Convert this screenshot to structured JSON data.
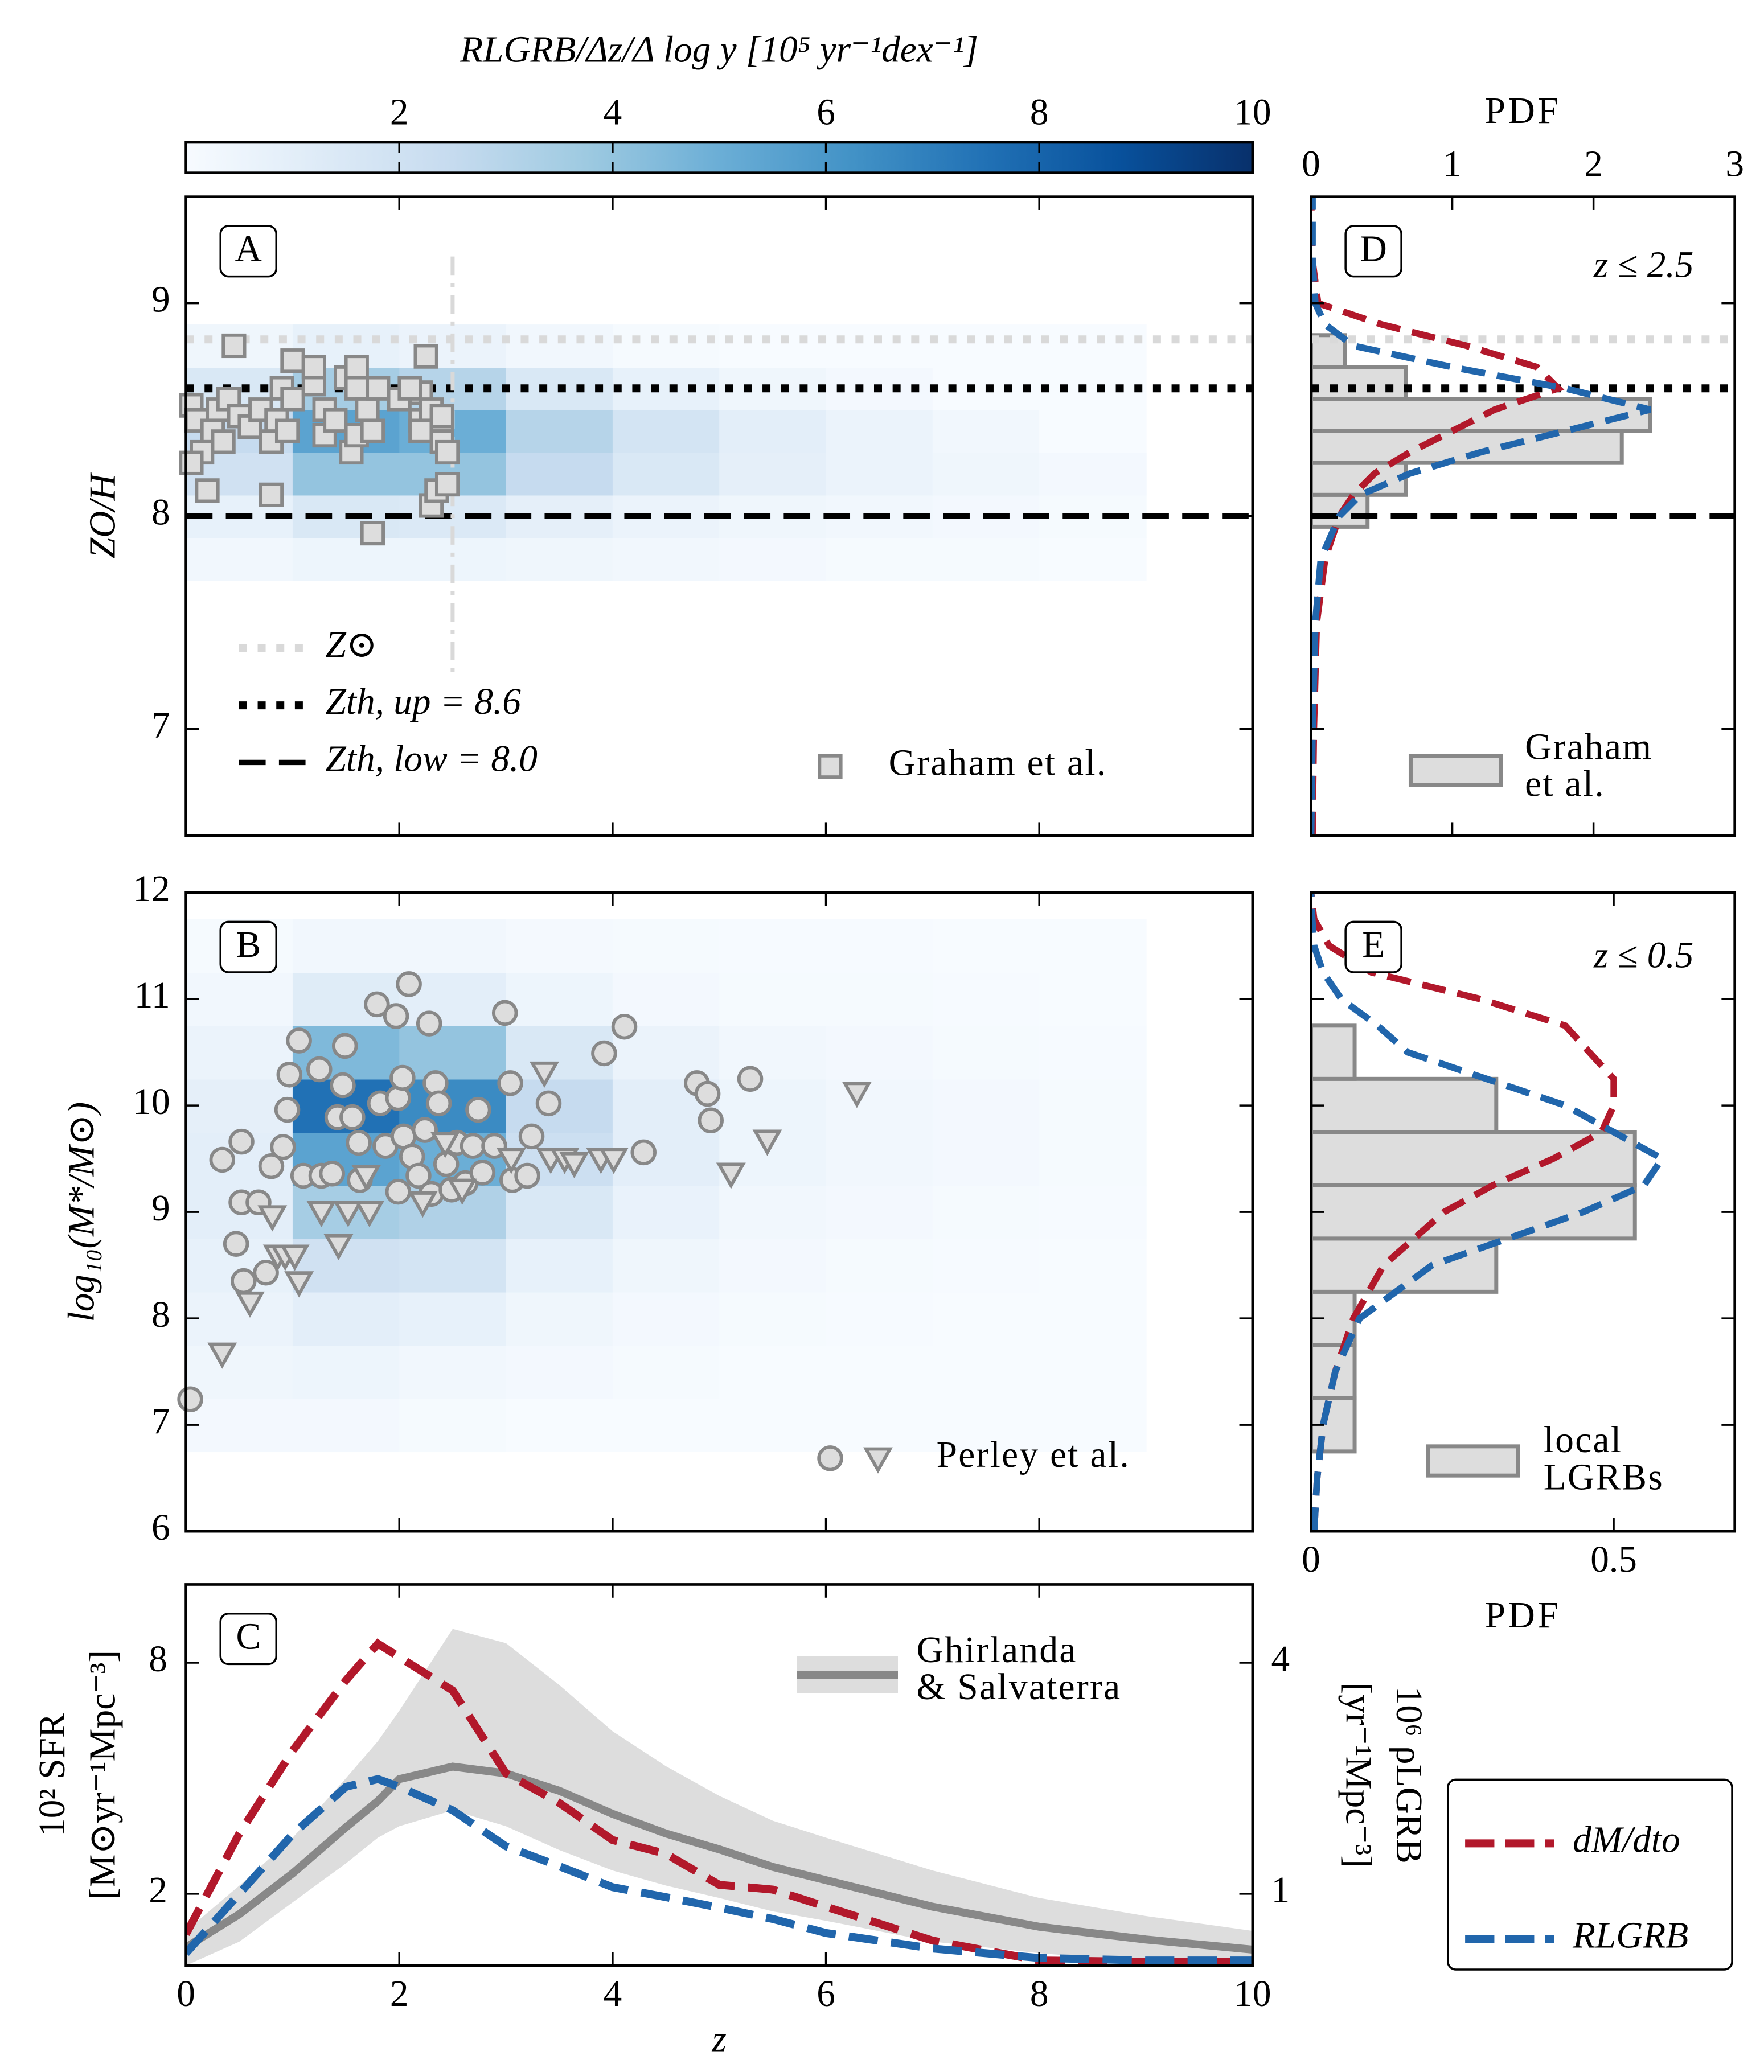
{
  "chart_data": [
    {
      "type": "colorbar",
      "title": "RLGRB/Δz/Δ log y  [10⁵ yr⁻¹dex⁻¹]",
      "clim": [
        0,
        10
      ],
      "ticks": [
        2,
        4,
        6,
        8,
        10
      ],
      "colors": [
        "#f7fbff",
        "#deebf7",
        "#c6dbef",
        "#9ecae1",
        "#6baed6",
        "#4292c6",
        "#2171b5",
        "#08519c",
        "#08306b"
      ]
    },
    {
      "type": "heatmap",
      "label": "A",
      "ylabel": [
        "ZO/H"
      ],
      "xlim": [
        0,
        10
      ],
      "ylim": [
        6.5,
        9.5
      ],
      "xticks": [
        0,
        2,
        4,
        6,
        8,
        10
      ],
      "yticks": [
        7,
        8,
        9
      ],
      "zbins": [
        0,
        1,
        2,
        3,
        4,
        5,
        6,
        7,
        8,
        9
      ],
      "ybins": [
        7.7,
        7.9,
        8.1,
        8.3,
        8.5,
        8.7,
        8.9
      ],
      "density": [
        [
          0.3,
          0.5,
          0.5,
          0.4,
          0.3,
          0.2,
          0.1,
          0.1,
          0
        ],
        [
          0.8,
          1.5,
          1.4,
          0.9,
          0.6,
          0.4,
          0.3,
          0.2,
          0.1
        ],
        [
          2,
          4,
          4,
          2.5,
          1.5,
          0.9,
          0.6,
          0.4,
          0.2
        ],
        [
          2.5,
          5.5,
          5,
          3,
          1.8,
          1,
          0.6,
          0.3,
          0
        ],
        [
          1.5,
          3.5,
          3,
          1.5,
          0.8,
          0.4,
          0.2,
          0,
          0
        ],
        [
          0.4,
          0.8,
          0.6,
          0.3,
          0.1,
          0,
          0,
          0,
          0
        ]
      ],
      "hlines": [
        {
          "name": "Z⊙",
          "value": 8.83,
          "color": "#d9d9d9",
          "style": "dotted"
        },
        {
          "name": "Zth, up = 8.6",
          "value": 8.6,
          "color": "#000000",
          "style": "dotted"
        },
        {
          "name": "Zth, low = 8.0",
          "value": 8.0,
          "color": "#000000",
          "style": "dashed"
        }
      ],
      "vline": {
        "value": 2.5,
        "color": "#d9d9d9"
      },
      "scatter_label": "Graham et al.",
      "scatter": [
        {
          "marker": "square",
          "x": [
            0.45,
            0.05,
            0.1,
            0.15,
            0.05,
            0.2,
            0.25,
            0.3,
            0.35,
            0.4,
            0.5,
            0.6,
            0.7,
            0.8,
            0.85,
            0.9,
            0.95,
            0.8,
            1.0,
            1.0,
            1.2,
            1.2,
            1.3,
            1.5,
            1.6,
            1.6,
            1.3,
            1.4,
            1.55,
            1.6,
            1.7,
            1.75,
            1.8,
            1.75,
            2.0,
            2.2,
            2.2,
            2.3,
            2.25,
            2.3,
            2.1,
            2.4,
            2.4,
            2.45,
            2.35,
            2.45,
            2.4,
            2.2
          ],
          "y": [
            8.8,
            8.52,
            8.45,
            8.3,
            8.25,
            8.12,
            8.4,
            8.5,
            8.35,
            8.55,
            8.47,
            8.42,
            8.5,
            8.35,
            8.45,
            8.6,
            8.4,
            8.1,
            8.55,
            8.73,
            8.62,
            8.7,
            8.5,
            8.65,
            8.6,
            8.7,
            8.38,
            8.45,
            8.3,
            8.38,
            8.5,
            8.4,
            8.6,
            7.92,
            8.55,
            8.58,
            8.45,
            8.5,
            8.75,
            8.05,
            8.6,
            8.45,
            8.35,
            8.3,
            8.12,
            8.15,
            8.47,
            8.4
          ]
        }
      ]
    },
    {
      "type": "histogram",
      "label": "D",
      "annotation": "z ≤ 2.5",
      "xlabel": "PDF",
      "xlim": [
        0,
        3
      ],
      "xticks": [
        0,
        1,
        2,
        3
      ],
      "ylim": [
        6.5,
        9.5
      ],
      "yticks": [
        7,
        8,
        9
      ],
      "bins": [
        7.95,
        8.1,
        8.25,
        8.4,
        8.55,
        8.7,
        8.85
      ],
      "counts": [
        0.4,
        0.67,
        2.2,
        2.4,
        0.67,
        0.24
      ],
      "hist_color": "#dddddd",
      "legend_lines": [
        "Graham",
        "et al."
      ],
      "hlines": [
        {
          "value": 8.83,
          "color": "#d9d9d9",
          "style": "dotted"
        },
        {
          "value": 8.6,
          "color": "#000000",
          "style": "dotted"
        },
        {
          "value": 8.0,
          "color": "#000000",
          "style": "dashed"
        }
      ],
      "curves": {
        "y": [
          6.5,
          7.0,
          7.5,
          7.8,
          8.0,
          8.1,
          8.2,
          8.3,
          8.4,
          8.5,
          8.6,
          8.7,
          8.8,
          8.9,
          9.0,
          9.2,
          9.5
        ],
        "series": [
          {
            "color": "#b2182b",
            "values": [
              0.01,
              0.02,
              0.04,
              0.1,
              0.2,
              0.3,
              0.45,
              0.7,
              1.0,
              1.3,
              1.75,
              1.6,
              1.1,
              0.5,
              0.05,
              0.01,
              0
            ]
          },
          {
            "color": "#2166ac",
            "values": [
              0,
              0.01,
              0.03,
              0.07,
              0.2,
              0.35,
              0.7,
              1.2,
              1.8,
              2.4,
              1.8,
              1.0,
              0.3,
              0.1,
              0.03,
              0.01,
              0.01
            ]
          }
        ]
      }
    },
    {
      "type": "heatmap",
      "label": "B",
      "ylabel": [
        "log₁₀(M*/M⊙)"
      ],
      "xlim": [
        0,
        10
      ],
      "ylim": [
        6,
        12
      ],
      "xticks": [
        0,
        2,
        4,
        6,
        8,
        10
      ],
      "yticks": [
        6,
        7,
        8,
        9,
        10,
        11,
        12
      ],
      "zbins": [
        0,
        1,
        2,
        3,
        4,
        5,
        6,
        7,
        8,
        9
      ],
      "ybins": [
        6.75,
        7.25,
        7.75,
        8.25,
        8.75,
        9.25,
        9.75,
        10.25,
        10.75,
        11.25,
        11.75
      ],
      "density": [
        [
          0.2,
          0.2,
          0.1,
          0,
          0,
          0,
          0,
          0,
          0
        ],
        [
          0.4,
          0.5,
          0.3,
          0.2,
          0.1,
          0,
          0,
          0,
          0
        ],
        [
          0.6,
          1.0,
          0.8,
          0.4,
          0.2,
          0.1,
          0.05,
          0,
          0
        ],
        [
          0.8,
          2.0,
          1.8,
          0.8,
          0.4,
          0.2,
          0.1,
          0.05,
          0
        ],
        [
          1.0,
          3.5,
          3.2,
          1.5,
          0.7,
          0.3,
          0.2,
          0.1,
          0.05
        ],
        [
          1.0,
          5.5,
          5.0,
          2.2,
          1.0,
          0.5,
          0.3,
          0.2,
          0.1
        ],
        [
          0.9,
          7.5,
          6.5,
          2.5,
          1.0,
          0.5,
          0.3,
          0.2,
          0.1
        ],
        [
          0.6,
          4.5,
          4.0,
          1.5,
          0.6,
          0.3,
          0.2,
          0.1,
          0.05
        ],
        [
          0.3,
          1.2,
          1.0,
          0.5,
          0.2,
          0.1,
          0.1,
          0.05,
          0
        ],
        [
          0.1,
          0.3,
          0.3,
          0.15,
          0.1,
          0.05,
          0.05,
          0,
          0
        ]
      ],
      "scatter_label": "Perley et al.",
      "scatter": [
        {
          "marker": "circle",
          "x": [
            0.04,
            0.34,
            0.52,
            0.52,
            0.68,
            0.47,
            0.54,
            0.75,
            0.8,
            0.91,
            0.95,
            0.97,
            1.06,
            1.1,
            1.25,
            1.27,
            1.37,
            1.42,
            1.47,
            1.49,
            1.56,
            1.62,
            1.63,
            1.79,
            1.82,
            1.87,
            1.97,
            1.99,
            2.03,
            2.04,
            1.99,
            2.09,
            2.12,
            2.18,
            2.24,
            2.28,
            2.34,
            2.3,
            2.37,
            2.44,
            2.49,
            2.54,
            2.62,
            2.69,
            2.74,
            2.78,
            2.89,
            2.99,
            3.04,
            3.06,
            3.2,
            3.24,
            3.4,
            3.92,
            4.11,
            4.29,
            4.79,
            4.89,
            4.92,
            5.29
          ],
          "y": [
            7.24,
            9.49,
            9.66,
            9.09,
            9.09,
            8.7,
            8.35,
            8.43,
            9.43,
            9.61,
            9.96,
            10.29,
            10.61,
            9.34,
            10.34,
            9.34,
            9.36,
            9.89,
            10.19,
            10.56,
            9.89,
            9.65,
            9.3,
            10.95,
            10.02,
            9.62,
            10.84,
            10.07,
            10.26,
            9.71,
            9.19,
            11.14,
            9.52,
            9.34,
            9.77,
            10.77,
            10.21,
            9.17,
            10.02,
            9.45,
            9.21,
            9.65,
            9.27,
            9.62,
            9.96,
            9.37,
            9.62,
            10.87,
            10.21,
            9.3,
            9.34,
            9.71,
            10.02,
            10.49,
            10.74,
            9.56,
            10.21,
            10.11,
            9.86,
            10.25
          ]
        },
        {
          "marker": "triangle",
          "x": [
            0.34,
            0.6,
            0.81,
            0.86,
            0.93,
            1.02,
            1.06,
            1.27,
            1.43,
            1.52,
            1.72,
            1.69,
            2.22,
            2.43,
            2.59,
            3.05,
            3.36,
            3.42,
            3.55,
            3.64,
            3.89,
            4.01,
            5.11,
            5.45,
            6.29
          ],
          "y": [
            7.67,
            8.15,
            8.96,
            8.59,
            8.59,
            8.59,
            8.34,
            9.0,
            8.69,
            9.0,
            9.0,
            9.34,
            9.09,
            9.65,
            9.21,
            9.5,
            10.31,
            9.5,
            9.5,
            9.46,
            9.5,
            9.5,
            9.36,
            9.67,
            10.12
          ]
        }
      ]
    },
    {
      "type": "histogram",
      "label": "E",
      "annotation": "z ≤ 0.5",
      "xlabel": "PDF",
      "xlim": [
        0,
        0.7
      ],
      "xticks": [
        0,
        0.5
      ],
      "ylim": [
        6,
        12
      ],
      "yticks": [
        6,
        7,
        8,
        9,
        10,
        11,
        12
      ],
      "bins": [
        6.75,
        7.25,
        7.75,
        8.25,
        8.75,
        9.25,
        9.75,
        10.25,
        10.75
      ],
      "counts": [
        0.072,
        0.072,
        0.072,
        0.306,
        0.535,
        0.535,
        0.306,
        0.072
      ],
      "hist_color": "#dddddd",
      "legend_lines": [
        "local",
        "LGRBs"
      ],
      "curves": {
        "y": [
          6,
          6.5,
          7,
          7.5,
          8,
          8.5,
          9,
          9.25,
          9.5,
          9.75,
          10,
          10.25,
          10.5,
          10.75,
          11,
          11.25,
          11.5,
          11.75,
          12
        ],
        "series": [
          {
            "color": "#b2182b",
            "values": [
              0.005,
              0.01,
              0.02,
              0.04,
              0.07,
              0.12,
              0.22,
              0.3,
              0.4,
              0.48,
              0.5,
              0.5,
              0.46,
              0.42,
              0.28,
              0.1,
              0.03,
              0.005,
              0
            ]
          },
          {
            "color": "#2166ac",
            "values": [
              0.005,
              0.01,
              0.02,
              0.04,
              0.08,
              0.2,
              0.45,
              0.55,
              0.58,
              0.5,
              0.42,
              0.29,
              0.16,
              0.11,
              0.05,
              0.02,
              0.005,
              0.002,
              0
            ]
          }
        ]
      }
    },
    {
      "type": "line",
      "label": "C",
      "xlabel": "z",
      "ylabel": [
        "10² SFR",
        "[M⊙yr⁻¹Mpc⁻³]"
      ],
      "y2label": [
        "10⁶ ρLGRB",
        "[yr⁻¹Mpc⁻³]"
      ],
      "log_y": true,
      "xlim": [
        0,
        10
      ],
      "xticks": [
        0,
        2,
        4,
        6,
        8,
        10
      ],
      "ylim": [
        1.3,
        12.8
      ],
      "yticks": [
        2,
        8
      ],
      "y2lim": [
        0.65,
        6.4
      ],
      "y2ticks": [
        1,
        4
      ],
      "x": [
        0,
        0.5,
        1,
        1.5,
        1.8,
        2,
        2.5,
        3,
        3.5,
        4,
        4.5,
        5,
        5.5,
        6,
        7,
        8,
        9,
        10
      ],
      "band": {
        "legend_lines": [
          "Ghirlanda",
          "& Salvaterra"
        ],
        "color": "#dddddd",
        "lower": [
          1.3,
          1.5,
          1.9,
          2.4,
          2.8,
          3.0,
          3.3,
          3.0,
          2.6,
          2.3,
          2.1,
          1.95,
          1.8,
          1.7,
          1.5,
          1.4,
          1.33,
          1.3
        ],
        "upper": [
          1.6,
          2.1,
          2.8,
          4.0,
          5.0,
          6.0,
          9.8,
          9.0,
          7.0,
          5.3,
          4.3,
          3.6,
          3.1,
          2.8,
          2.3,
          1.95,
          1.75,
          1.6
        ]
      },
      "series": [
        {
          "color": "#888888",
          "values": [
            1.45,
            1.77,
            2.26,
            2.98,
            3.49,
            3.98,
            4.29,
            4.12,
            3.71,
            3.23,
            2.87,
            2.61,
            2.35,
            2.17,
            1.85,
            1.64,
            1.52,
            1.43
          ]
        },
        {
          "name": "dM/dto",
          "color": "#b2182b",
          "values": [
            1.57,
            2.87,
            4.72,
            7.2,
            8.97,
            8.28,
            6.77,
            4.12,
            3.45,
            2.76,
            2.54,
            2.11,
            2.05,
            1.85,
            1.51,
            1.34,
            1.33,
            1.33
          ]
        },
        {
          "name": "RLGRB",
          "color": "#2166ac",
          "axis": "y2",
          "values": [
            0.7,
            1.0,
            1.43,
            1.9,
            1.99,
            1.9,
            1.65,
            1.33,
            1.18,
            1.04,
            0.98,
            0.92,
            0.86,
            0.79,
            0.72,
            0.68,
            0.67,
            0.67
          ]
        }
      ]
    }
  ]
}
